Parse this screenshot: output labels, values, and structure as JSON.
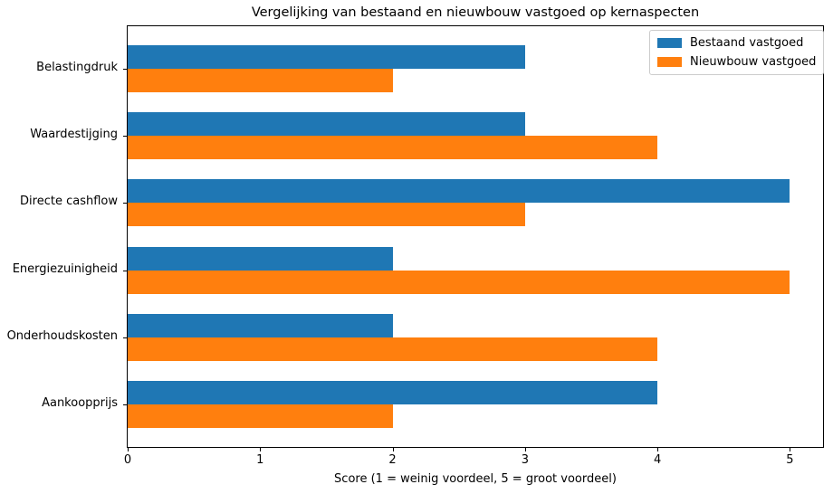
{
  "chart_data": {
    "type": "bar",
    "orientation": "horizontal",
    "title": "Vergelijking van bestaand en nieuwbouw vastgoed op kernaspecten",
    "xlabel": "Score (1 = weinig voordeel, 5 = groot voordeel)",
    "ylabel": "",
    "categories": [
      "Belastingdruk",
      "Waardestijging",
      "Directe cashflow",
      "Energiezuinigheid",
      "Onderhoudskosten",
      "Aankoopprijs"
    ],
    "category_order": "top-to-bottom",
    "series": [
      {
        "name": "Bestaand vastgoed",
        "color": "#1f77b4",
        "values": [
          3,
          3,
          5,
          2,
          2,
          4
        ]
      },
      {
        "name": "Nieuwbouw vastgoed",
        "color": "#ff7f0e",
        "values": [
          2,
          4,
          3,
          5,
          4,
          2
        ]
      }
    ],
    "xlim": [
      0,
      5.25
    ],
    "xticks": [
      0,
      1,
      2,
      3,
      4,
      5
    ],
    "grid": false,
    "legend": {
      "position": "upper right",
      "entries": [
        "Bestaand vastgoed",
        "Nieuwbouw vastgoed"
      ]
    },
    "background": "#ffffff",
    "spine_color": "#000000"
  }
}
